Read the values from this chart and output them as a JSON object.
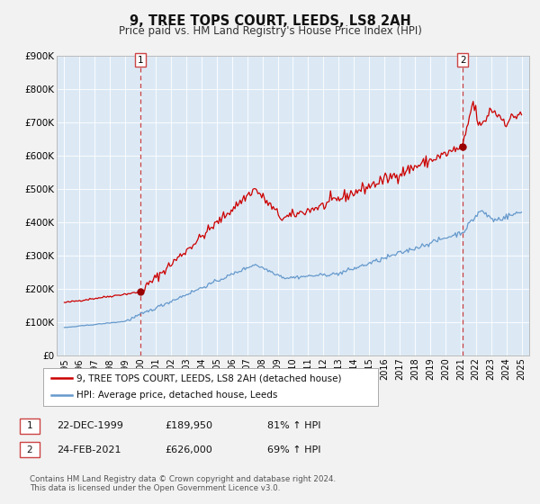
{
  "title": "9, TREE TOPS COURT, LEEDS, LS8 2AH",
  "subtitle": "Price paid vs. HM Land Registry's House Price Index (HPI)",
  "bg_color": "#dce9f5",
  "fig_bg_color": "#f2f2f2",
  "red_line_color": "#cc0000",
  "blue_line_color": "#6699cc",
  "marker_color": "#990000",
  "dashed_line_color": "#cc4444",
  "sale1_x": 1999.97,
  "sale1_y": 189950,
  "sale2_x": 2021.15,
  "sale2_y": 626000,
  "legend_label_red": "9, TREE TOPS COURT, LEEDS, LS8 2AH (detached house)",
  "legend_label_blue": "HPI: Average price, detached house, Leeds",
  "footer": "Contains HM Land Registry data © Crown copyright and database right 2024.\nThis data is licensed under the Open Government Licence v3.0.",
  "ylim": [
    0,
    900000
  ],
  "xlim": [
    1994.5,
    2025.5
  ],
  "yticks": [
    0,
    100000,
    200000,
    300000,
    400000,
    500000,
    600000,
    700000,
    800000,
    900000
  ],
  "ytick_labels": [
    "£0",
    "£100K",
    "£200K",
    "£300K",
    "£400K",
    "£500K",
    "£600K",
    "£700K",
    "£800K",
    "£900K"
  ],
  "xtick_years": [
    1995,
    1996,
    1997,
    1998,
    1999,
    2000,
    2001,
    2002,
    2003,
    2004,
    2005,
    2006,
    2007,
    2008,
    2009,
    2010,
    2011,
    2012,
    2013,
    2014,
    2015,
    2016,
    2017,
    2018,
    2019,
    2020,
    2021,
    2022,
    2023,
    2024,
    2025
  ],
  "sale1_date": "22-DEC-1999",
  "sale1_price": "£189,950",
  "sale1_hpi": "81% ↑ HPI",
  "sale2_date": "24-FEB-2021",
  "sale2_price": "£626,000",
  "sale2_hpi": "69% ↑ HPI"
}
